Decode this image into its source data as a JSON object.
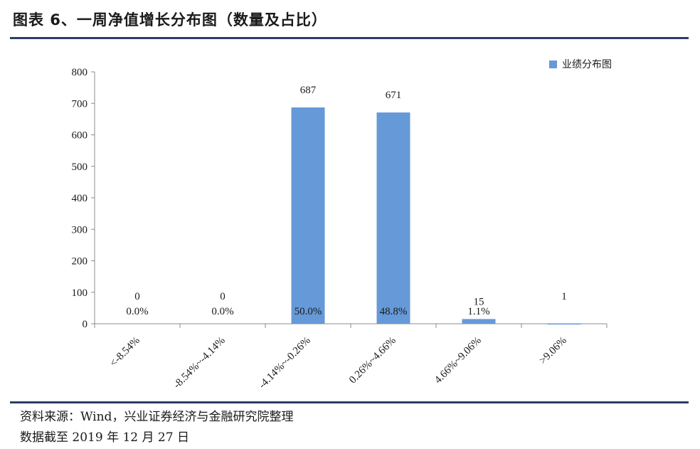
{
  "header": {
    "title": "图表 6、一周净值增长分布图（数量及占比）"
  },
  "footer": {
    "source": "资料来源：Wind，兴业证券经济与金融研究院整理",
    "cutoff": "数据截至 2019 年 12 月 27 日"
  },
  "chart_data": {
    "type": "bar",
    "categories": [
      "<-8.54%",
      "-8.54%~-4.14%",
      "-4.14%~-0.26%",
      "0.26%~4.66%",
      "4.66%~9.06%",
      ">9.06%"
    ],
    "series": [
      {
        "name": "业绩分布图",
        "values": [
          0,
          0,
          687,
          671,
          15,
          1
        ]
      }
    ],
    "percent_labels": [
      "0.0%",
      "0.0%",
      "50.0%",
      "48.8%",
      "1.1%",
      ""
    ],
    "ylim": [
      0,
      800
    ],
    "yticks": [
      0,
      100,
      200,
      300,
      400,
      500,
      600,
      700,
      800
    ],
    "grid": false,
    "legend_position": "top-right",
    "bar_color": "#6699d8"
  }
}
